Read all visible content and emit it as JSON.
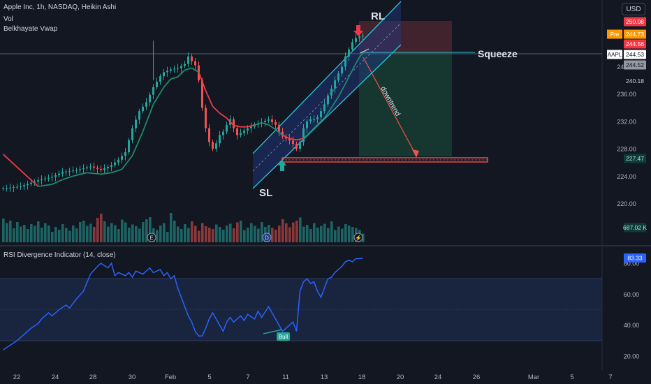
{
  "header": {
    "symbol_line": "Apple Inc, 1h, NASDAQ, Heikin Ashi",
    "volume_label": "Vol",
    "indicator_label": "Belkhayate Vwap",
    "rsi_label": "RSI Divergence Indicator (14, close)",
    "currency_button": "USD"
  },
  "annotations": {
    "rl": "RL",
    "sl": "SL",
    "squeeze": "Squeeze",
    "downtrend": "downtrend",
    "bull": "Bull"
  },
  "colors": {
    "background": "#131722",
    "up": "#26a69a",
    "down": "#ef5350",
    "vwap_up": "#1e8a6b",
    "vwap_down": "#ef3a47",
    "rsi": "#2962ff",
    "channel": "#26c6da",
    "target_zone": "#1d4538",
    "stop_zone": "#4a2630"
  },
  "price_badges": [
    {
      "text": "250.08",
      "bg": "#f23645",
      "fg": "#ffffff"
    },
    {
      "text": "244.73",
      "bg": "#ff9800",
      "fg": "#ffffff",
      "tag": "Pre"
    },
    {
      "text": "244.56",
      "bg": "#f23645",
      "fg": "#ffffff"
    },
    {
      "text": "244.53",
      "bg": "#ffffff",
      "fg": "#131722",
      "tag": "AAPL"
    },
    {
      "text": "244.52",
      "bg": "#9598a1",
      "fg": "#131722"
    },
    {
      "text": "240.18",
      "bg": "#131722",
      "fg": "#d1d4dc"
    },
    {
      "text": "227.47",
      "bg": "#0b3d3a",
      "fg": "#d1d4dc"
    },
    {
      "text": "687.02 K",
      "bg": "#0b3d3a",
      "fg": "#d1d4dc"
    }
  ],
  "rsi_badge": {
    "text": "83.33",
    "bg": "#2962ff",
    "fg": "#ffffff"
  },
  "chart_data": [
    {
      "type": "candlestick",
      "title": "Apple Inc, 1h, NASDAQ, Heikin Ashi",
      "xlabel": "",
      "ylabel": "",
      "y_ticks": [
        220.0,
        224.0,
        228.0,
        232.0,
        236.0,
        240.0
      ],
      "x_ticks": [
        "22",
        "24",
        "28",
        "30",
        "Feb",
        "5",
        "7",
        "11",
        "13",
        "18",
        "20",
        "24",
        "26",
        "Mar",
        "5",
        "7"
      ],
      "close_path": [
        [
          0,
          222.2
        ],
        [
          5,
          222.5
        ],
        [
          10,
          223.4
        ],
        [
          14,
          223.9
        ],
        [
          17,
          224.6
        ],
        [
          21,
          224.9
        ],
        [
          25,
          225.4
        ],
        [
          28,
          224.9
        ],
        [
          31,
          225.6
        ],
        [
          33,
          226.4
        ],
        [
          35,
          227.5
        ],
        [
          37,
          231.0
        ],
        [
          39,
          233.5
        ],
        [
          41,
          234.8
        ],
        [
          43,
          237.0
        ],
        [
          45,
          238.6
        ],
        [
          46,
          239.2
        ],
        [
          48,
          239.6
        ],
        [
          50,
          239.8
        ],
        [
          52,
          240.4
        ],
        [
          53,
          241.5
        ],
        [
          54,
          240.8
        ],
        [
          55,
          240.2
        ],
        [
          56,
          238.0
        ],
        [
          57,
          234.0
        ],
        [
          58,
          231.0
        ],
        [
          59,
          229.0
        ],
        [
          60,
          228.0
        ],
        [
          61,
          228.8
        ],
        [
          62,
          230.0
        ],
        [
          63,
          230.5
        ],
        [
          64,
          231.5
        ],
        [
          65,
          232.3
        ],
        [
          66,
          231.0
        ],
        [
          67,
          230.0
        ],
        [
          68,
          230.3
        ],
        [
          70,
          231.0
        ],
        [
          72,
          231.5
        ],
        [
          74,
          231.9
        ],
        [
          76,
          232.3
        ],
        [
          78,
          231.5
        ],
        [
          79,
          230.5
        ],
        [
          80,
          229.8
        ],
        [
          81,
          229.5
        ],
        [
          82,
          229.2
        ],
        [
          83,
          228.7
        ],
        [
          84,
          228.0
        ],
        [
          85,
          229.0
        ],
        [
          86,
          231.0
        ],
        [
          87,
          232.0
        ],
        [
          88,
          232.3
        ],
        [
          89,
          232.3
        ],
        [
          90,
          232.6
        ],
        [
          91,
          233.5
        ],
        [
          92,
          234.5
        ],
        [
          93,
          235.8
        ],
        [
          94,
          236.8
        ],
        [
          95,
          238.0
        ],
        [
          96,
          239.0
        ],
        [
          97,
          240.0
        ],
        [
          98,
          241.5
        ],
        [
          99,
          242.5
        ],
        [
          100,
          243.6
        ],
        [
          101,
          244.2
        ],
        [
          102,
          244.4
        ],
        [
          103,
          244.5
        ]
      ],
      "vwap": [
        [
          0,
          227.2
        ],
        [
          10,
          222.5
        ],
        [
          14,
          222.8
        ],
        [
          17,
          223.5
        ],
        [
          20,
          224.0
        ],
        [
          24,
          224.5
        ],
        [
          28,
          224.3
        ],
        [
          31,
          224.5
        ],
        [
          34,
          225.0
        ],
        [
          37,
          227.0
        ],
        [
          40,
          230.5
        ],
        [
          43,
          234.5
        ],
        [
          46,
          237.0
        ],
        [
          48,
          238.2
        ],
        [
          50,
          238.5
        ],
        [
          52,
          239.5
        ],
        [
          54,
          239.8
        ],
        [
          56,
          239.2
        ],
        [
          58,
          236.5
        ],
        [
          60,
          234.2
        ],
        [
          62,
          233.2
        ],
        [
          64,
          232.5
        ],
        [
          66,
          231.4
        ],
        [
          68,
          231.2
        ],
        [
          70,
          231.2
        ],
        [
          72,
          231.5
        ],
        [
          74,
          231.8
        ],
        [
          76,
          231.5
        ],
        [
          78,
          230.8
        ],
        [
          80,
          230.0
        ],
        [
          82,
          229.5
        ],
        [
          84,
          229.3
        ],
        [
          86,
          229.5
        ],
        [
          88,
          230.5
        ],
        [
          90,
          231.5
        ],
        [
          92,
          232.5
        ],
        [
          94,
          234.0
        ],
        [
          96,
          235.6
        ],
        [
          98,
          237.5
        ],
        [
          100,
          239.5
        ],
        [
          102,
          241.4
        ],
        [
          103,
          242.0
        ]
      ],
      "volume": [
        68,
        55,
        62,
        40,
        58,
        45,
        50,
        38,
        52,
        47,
        60,
        42,
        55,
        48,
        30,
        44,
        36,
        52,
        41,
        33,
        48,
        40,
        58,
        62,
        47,
        53,
        44,
        70,
        82,
        60,
        45,
        55,
        49,
        38,
        65,
        57,
        42,
        51,
        46,
        39,
        58,
        66,
        72,
        40,
        35,
        48,
        55,
        30,
        84,
        62,
        45,
        38,
        52,
        41,
        60,
        47,
        33,
        55,
        46,
        42,
        38,
        51,
        44,
        36,
        48,
        53,
        40,
        57,
        62,
        35,
        42,
        55,
        47,
        39,
        58,
        44,
        50,
        41,
        36,
        48,
        66,
        54,
        43,
        57,
        62,
        71,
        45,
        50,
        38,
        55,
        42,
        47,
        53,
        41,
        60,
        35,
        45,
        39,
        52,
        48,
        44,
        41,
        36,
        25
      ],
      "levels": {
        "resistance": 244.53,
        "support_zone": [
          227.47,
          228.2
        ]
      }
    },
    {
      "type": "line",
      "title": "RSI Divergence Indicator (14, close)",
      "xlabel": "",
      "ylabel": "",
      "ylim": [
        15,
        85
      ],
      "y_ticks": [
        20.0,
        40.0,
        60.0,
        80.0
      ],
      "bands": [
        30,
        70
      ],
      "series": [
        {
          "values": [
            [
              0,
              24
            ],
            [
              2,
              27
            ],
            [
              4,
              30
            ],
            [
              6,
              34
            ],
            [
              8,
              38
            ],
            [
              10,
              41
            ],
            [
              11,
              44
            ],
            [
              13,
              48
            ],
            [
              14,
              46
            ],
            [
              16,
              50
            ],
            [
              18,
              53
            ],
            [
              19,
              51
            ],
            [
              21,
              57
            ],
            [
              23,
              62
            ],
            [
              25,
              73
            ],
            [
              27,
              78
            ],
            [
              28,
              80
            ],
            [
              30,
              77
            ],
            [
              31,
              80
            ],
            [
              32,
              72
            ],
            [
              33,
              74
            ],
            [
              35,
              72
            ],
            [
              36,
              74
            ],
            [
              37,
              71
            ],
            [
              38,
              75
            ],
            [
              40,
              73
            ],
            [
              42,
              77
            ],
            [
              43,
              74
            ],
            [
              45,
              76
            ],
            [
              46,
              72
            ],
            [
              47,
              74
            ],
            [
              48,
              70
            ],
            [
              49,
              72
            ],
            [
              50,
              64
            ],
            [
              51,
              58
            ],
            [
              52,
              52
            ],
            [
              53,
              46
            ],
            [
              54,
              42
            ],
            [
              55,
              36
            ],
            [
              56,
              33
            ],
            [
              57,
              33
            ],
            [
              58,
              38
            ],
            [
              59,
              44
            ],
            [
              60,
              48
            ],
            [
              61,
              44
            ],
            [
              62,
              40
            ],
            [
              63,
              36
            ],
            [
              64,
              42
            ],
            [
              65,
              45
            ],
            [
              66,
              42
            ],
            [
              68,
              46
            ],
            [
              69,
              43
            ],
            [
              70,
              47
            ],
            [
              72,
              44
            ],
            [
              73,
              49
            ],
            [
              74,
              45
            ],
            [
              76,
              52
            ],
            [
              77,
              48
            ],
            [
              78,
              44
            ],
            [
              79,
              40
            ],
            [
              80,
              36
            ],
            [
              81,
              38
            ],
            [
              82,
              40
            ],
            [
              83,
              42
            ],
            [
              84,
              36
            ],
            [
              85,
              62
            ],
            [
              86,
              68
            ],
            [
              87,
              70
            ],
            [
              88,
              67
            ],
            [
              89,
              68
            ],
            [
              90,
              62
            ],
            [
              91,
              58
            ],
            [
              92,
              64
            ],
            [
              93,
              70
            ],
            [
              94,
              71
            ],
            [
              95,
              74
            ],
            [
              96,
              76
            ],
            [
              97,
              78
            ],
            [
              98,
              81
            ],
            [
              99,
              82
            ],
            [
              100,
              81
            ],
            [
              101,
              83
            ],
            [
              102,
              83
            ],
            [
              103,
              83.3
            ]
          ]
        }
      ]
    }
  ]
}
